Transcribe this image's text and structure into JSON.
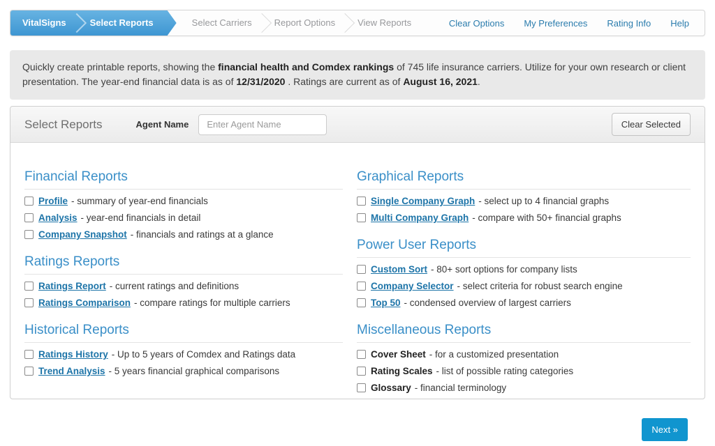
{
  "nav": {
    "tabs": [
      {
        "label": "VitalSigns",
        "active": true
      },
      {
        "label": "Select Reports",
        "active": true
      },
      {
        "label": "Select Carriers",
        "active": false
      },
      {
        "label": "Report Options",
        "active": false
      },
      {
        "label": "View Reports",
        "active": false
      }
    ],
    "links": [
      "Clear Options",
      "My Preferences",
      "Rating Info",
      "Help"
    ]
  },
  "intro": {
    "part1": "Quickly create printable reports, showing the ",
    "bold1": "financial health and Comdex rankings",
    "part2": " of 745 life insurance carriers. Utilize for your own research or client presentation. The year-end financial data is as of ",
    "bold2": "12/31/2020",
    "part3": " . Ratings are current as of ",
    "bold3": "August 16, 2021",
    "part4": "."
  },
  "panel": {
    "title": "Select Reports",
    "agent_label": "Agent Name",
    "agent_placeholder": "Enter Agent Name",
    "agent_value": "",
    "clear_button": "Clear Selected"
  },
  "sections": {
    "left": [
      {
        "title": "Financial Reports",
        "items": [
          {
            "name": "Profile",
            "desc": "- summary of year-end financials",
            "link": true,
            "checked": false
          },
          {
            "name": "Analysis",
            "desc": "- year-end financials in detail",
            "link": true,
            "checked": false
          },
          {
            "name": "Company Snapshot",
            "desc": "- financials and ratings at a glance",
            "link": true,
            "checked": false
          }
        ]
      },
      {
        "title": "Ratings Reports",
        "items": [
          {
            "name": "Ratings Report",
            "desc": "- current ratings and definitions",
            "link": true,
            "checked": false
          },
          {
            "name": "Ratings Comparison",
            "desc": "- compare ratings for multiple carriers",
            "link": true,
            "checked": false
          }
        ]
      },
      {
        "title": "Historical Reports",
        "items": [
          {
            "name": "Ratings History",
            "desc": "- Up to 5 years of Comdex and Ratings data",
            "link": true,
            "checked": false
          },
          {
            "name": "Trend Analysis",
            "desc": "- 5 years financial graphical comparisons",
            "link": true,
            "checked": false
          }
        ]
      }
    ],
    "right": [
      {
        "title": "Graphical Reports",
        "items": [
          {
            "name": "Single Company Graph",
            "desc": "- select up to 4 financial graphs",
            "link": true,
            "checked": false
          },
          {
            "name": "Multi Company Graph",
            "desc": "- compare with 50+ financial graphs",
            "link": true,
            "checked": false
          }
        ]
      },
      {
        "title": "Power User Reports",
        "items": [
          {
            "name": "Custom Sort",
            "desc": "- 80+ sort options for company lists",
            "link": true,
            "checked": false
          },
          {
            "name": "Company Selector",
            "desc": "- select criteria for robust search engine",
            "link": true,
            "checked": false
          },
          {
            "name": "Top 50",
            "desc": "- condensed overview of largest carriers",
            "link": true,
            "checked": false
          }
        ]
      },
      {
        "title": "Miscellaneous Reports",
        "items": [
          {
            "name": "Cover Sheet",
            "desc": "- for a customized presentation",
            "link": false,
            "checked": false
          },
          {
            "name": "Rating Scales",
            "desc": "- list of possible rating categories",
            "link": false,
            "checked": false
          },
          {
            "name": "Glossary",
            "desc": "- financial terminology",
            "link": false,
            "checked": false
          }
        ]
      }
    ]
  },
  "footer": {
    "next_label": "Next »"
  },
  "colors": {
    "tab_blue_top": "#67b3e2",
    "tab_blue_bottom": "#3e96d2",
    "heading_blue": "#3a8fc8",
    "link_blue": "#1d74a8",
    "nav_link_blue": "#2a7cad",
    "next_button_blue": "#1095cf",
    "intro_gray": "#e9e9e9"
  }
}
